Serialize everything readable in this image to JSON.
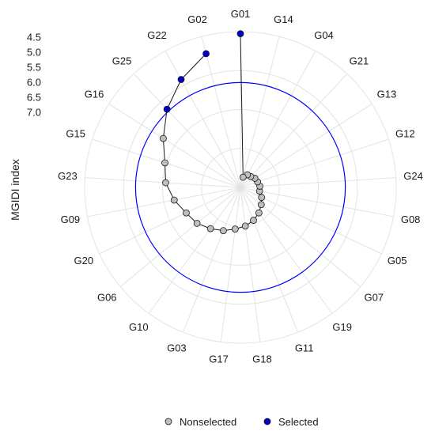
{
  "chart_data": {
    "type": "scatter",
    "subtype": "radar",
    "ylabel": "MGIDI index",
    "y_ticks": [
      "4.5",
      "5.0",
      "5.5",
      "6.0",
      "6.5",
      "7.0"
    ],
    "r_lim": [
      4.3,
      9.5
    ],
    "r_inverted": true,
    "cutoff_radius": 6.0,
    "genotype_order": [
      "G01",
      "G14",
      "G04",
      "G21",
      "G13",
      "G12",
      "G24",
      "G08",
      "G05",
      "G07",
      "G19",
      "G11",
      "G18",
      "G17",
      "G03",
      "G10",
      "G06",
      "G20",
      "G09",
      "G23",
      "G15",
      "G16",
      "G25",
      "G22",
      "G02"
    ],
    "points": [
      {
        "genotype": "G01",
        "mgidi": 4.37,
        "selected": true
      },
      {
        "genotype": "G02",
        "mgidi": 4.89,
        "selected": true
      },
      {
        "genotype": "G22",
        "mgidi": 5.39,
        "selected": true
      },
      {
        "genotype": "G25",
        "mgidi": 5.92,
        "selected": true
      },
      {
        "genotype": "G16",
        "mgidi": 6.45,
        "selected": false
      },
      {
        "genotype": "G15",
        "mgidi": 6.85,
        "selected": false
      },
      {
        "genotype": "G23",
        "mgidi": 7.0,
        "selected": false
      },
      {
        "genotype": "G09",
        "mgidi": 7.25,
        "selected": false
      },
      {
        "genotype": "G20",
        "mgidi": 7.5,
        "selected": false
      },
      {
        "genotype": "G06",
        "mgidi": 7.62,
        "selected": false
      },
      {
        "genotype": "G10",
        "mgidi": 7.8,
        "selected": false
      },
      {
        "genotype": "G03",
        "mgidi": 7.95,
        "selected": false
      },
      {
        "genotype": "G17",
        "mgidi": 8.1,
        "selected": false
      },
      {
        "genotype": "G18",
        "mgidi": 8.2,
        "selected": false
      },
      {
        "genotype": "G11",
        "mgidi": 8.32,
        "selected": false
      },
      {
        "genotype": "G19",
        "mgidi": 8.45,
        "selected": false
      },
      {
        "genotype": "G07",
        "mgidi": 8.6,
        "selected": false
      },
      {
        "genotype": "G05",
        "mgidi": 8.72,
        "selected": false
      },
      {
        "genotype": "G08",
        "mgidi": 8.85,
        "selected": false
      },
      {
        "genotype": "G24",
        "mgidi": 8.85,
        "selected": false
      },
      {
        "genotype": "G12",
        "mgidi": 8.9,
        "selected": false
      },
      {
        "genotype": "G13",
        "mgidi": 8.93,
        "selected": false
      },
      {
        "genotype": "G21",
        "mgidi": 9.0,
        "selected": false
      },
      {
        "genotype": "G04",
        "mgidi": 9.02,
        "selected": false
      },
      {
        "genotype": "G14",
        "mgidi": 9.15,
        "selected": false
      }
    ],
    "legend": {
      "placement": "bottom",
      "items": [
        {
          "label": "Nonselected",
          "color": "#bebebe"
        },
        {
          "label": "Selected",
          "color": "#0000cd"
        }
      ]
    },
    "colors": {
      "selected": "#0000cd",
      "nonselected": "#bebebe",
      "cutoff_line": "#0000ff",
      "path_line": "#1a1a1a",
      "grid": "#e3e3e3"
    },
    "grid": true
  }
}
